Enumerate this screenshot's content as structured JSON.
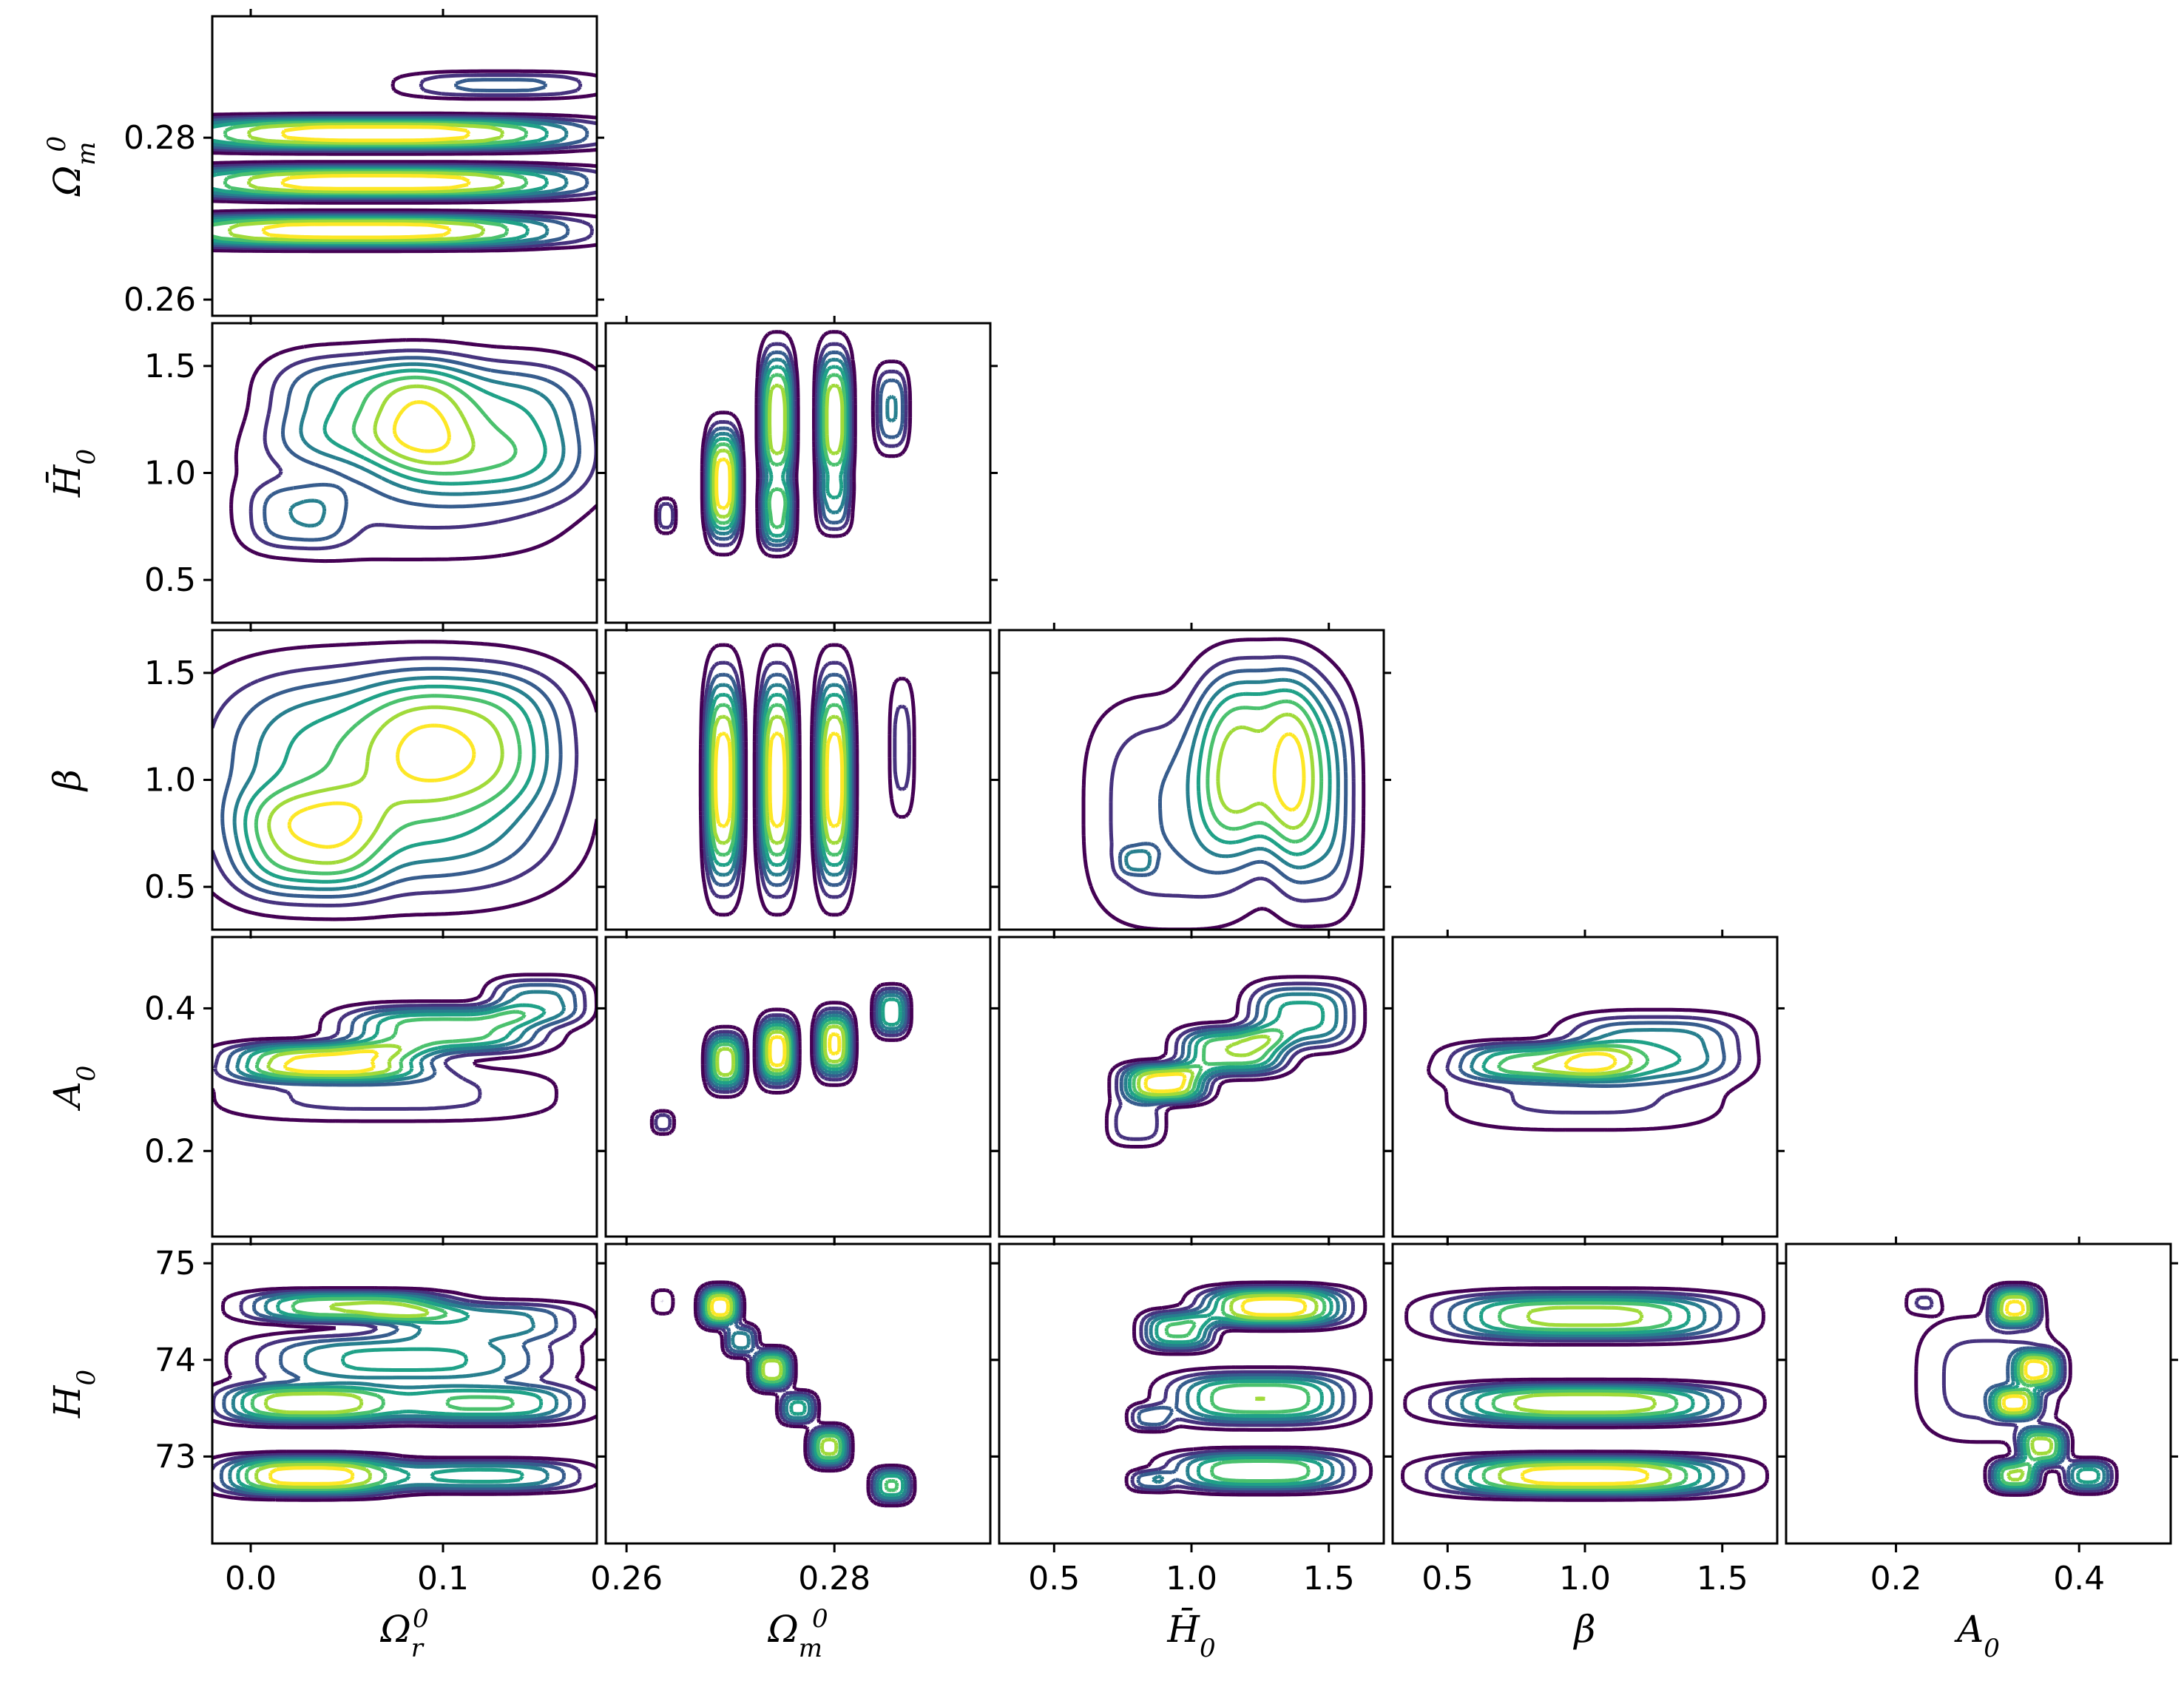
{
  "chart_data": {
    "type": "corner-contour",
    "title": "",
    "parameters": [
      {
        "key": "Om_r",
        "label": "Ω",
        "label_sub": "r",
        "label_sup": "0",
        "range": [
          -0.02,
          0.18
        ],
        "ticks": [
          0.0,
          0.1
        ],
        "tick_labels": [
          "0.0",
          "0.1"
        ]
      },
      {
        "key": "Om_m",
        "label": "Ω",
        "label_sub": "m",
        "label_sup": "0",
        "range": [
          0.258,
          0.295
        ],
        "ticks": [
          0.26,
          0.28
        ],
        "tick_labels": [
          "0.26",
          "0.28"
        ]
      },
      {
        "key": "Hbar0",
        "label": "H̄",
        "label_sub": "0",
        "label_sup": "",
        "range": [
          0.3,
          1.7
        ],
        "ticks": [
          0.5,
          1.0,
          1.5
        ],
        "tick_labels": [
          "0.5",
          "1.0",
          "1.5"
        ]
      },
      {
        "key": "beta",
        "label": "β",
        "label_sub": "",
        "label_sup": "",
        "range": [
          0.3,
          1.7
        ],
        "ticks": [
          0.5,
          1.0,
          1.5
        ],
        "tick_labels": [
          "0.5",
          "1.0",
          "1.5"
        ]
      },
      {
        "key": "A0",
        "label": "A",
        "label_sub": "0",
        "label_sup": "",
        "range": [
          0.08,
          0.5
        ],
        "ticks": [
          0.2,
          0.4
        ],
        "tick_labels": [
          "0.2",
          "0.4"
        ]
      },
      {
        "key": "H0",
        "label": "H",
        "label_sub": "0",
        "label_sup": "",
        "range": [
          72.1,
          75.2
        ],
        "ticks": [
          73,
          74,
          75
        ],
        "tick_labels": [
          "73",
          "74",
          "75"
        ]
      }
    ],
    "colormap": [
      "#440154",
      "#46327e",
      "#365c8d",
      "#277f8e",
      "#1fa187",
      "#4ac16d",
      "#a0da39",
      "#fde725"
    ],
    "contour_levels": 8,
    "panels": [
      {
        "x": "Om_r",
        "y": "Om_m",
        "blobs": [
          {
            "cx": 0.065,
            "cy": 0.2805,
            "sx": 0.085,
            "sy": 0.0015,
            "w": 1.0
          },
          {
            "cx": 0.065,
            "cy": 0.2745,
            "sx": 0.085,
            "sy": 0.0015,
            "w": 1.0
          },
          {
            "cx": 0.055,
            "cy": 0.2685,
            "sx": 0.085,
            "sy": 0.0015,
            "w": 1.0
          },
          {
            "cx": 0.13,
            "cy": 0.2865,
            "sx": 0.04,
            "sy": 0.0012,
            "w": 0.35
          }
        ]
      },
      {
        "x": "Om_r",
        "y": "Hbar0",
        "blobs": [
          {
            "cx": 0.12,
            "cy": 1.2,
            "sx": 0.045,
            "sy": 0.25,
            "w": 1.0
          },
          {
            "cx": 0.06,
            "cy": 1.3,
            "sx": 0.04,
            "sy": 0.2,
            "w": 0.9
          },
          {
            "cx": 0.025,
            "cy": 0.8,
            "sx": 0.02,
            "sy": 0.12,
            "w": 0.5
          },
          {
            "cx": 0.08,
            "cy": 0.9,
            "sx": 0.07,
            "sy": 0.25,
            "w": 0.35
          }
        ]
      },
      {
        "x": "Om_r",
        "y": "beta",
        "blobs": [
          {
            "cx": 0.07,
            "cy": 1.0,
            "sx": 0.07,
            "sy": 0.4,
            "w": 1.0
          },
          {
            "cx": 0.03,
            "cy": 0.7,
            "sx": 0.03,
            "sy": 0.2,
            "w": 0.6
          },
          {
            "cx": 0.11,
            "cy": 1.2,
            "sx": 0.04,
            "sy": 0.25,
            "w": 0.5
          }
        ]
      },
      {
        "x": "Om_r",
        "y": "A0",
        "blobs": [
          {
            "cx": 0.04,
            "cy": 0.325,
            "sx": 0.04,
            "sy": 0.02,
            "w": 1.0
          },
          {
            "cx": 0.1,
            "cy": 0.37,
            "sx": 0.04,
            "sy": 0.025,
            "w": 0.8
          },
          {
            "cx": 0.15,
            "cy": 0.41,
            "sx": 0.02,
            "sy": 0.025,
            "w": 0.5
          },
          {
            "cx": 0.07,
            "cy": 0.28,
            "sx": 0.07,
            "sy": 0.03,
            "w": 0.25
          }
        ]
      },
      {
        "x": "Om_r",
        "y": "H0",
        "blobs": [
          {
            "cx": 0.03,
            "cy": 72.8,
            "sx": 0.035,
            "sy": 0.15,
            "w": 1.0
          },
          {
            "cx": 0.03,
            "cy": 73.55,
            "sx": 0.035,
            "sy": 0.15,
            "w": 0.9
          },
          {
            "cx": 0.05,
            "cy": 74.55,
            "sx": 0.04,
            "sy": 0.12,
            "w": 0.8
          },
          {
            "cx": 0.12,
            "cy": 73.55,
            "sx": 0.04,
            "sy": 0.15,
            "w": 0.7
          },
          {
            "cx": 0.12,
            "cy": 72.8,
            "sx": 0.04,
            "sy": 0.12,
            "w": 0.6
          },
          {
            "cx": 0.08,
            "cy": 74.0,
            "sx": 0.06,
            "sy": 0.2,
            "w": 0.6
          },
          {
            "cx": 0.12,
            "cy": 74.4,
            "sx": 0.04,
            "sy": 0.15,
            "w": 0.5
          }
        ]
      },
      {
        "x": "Om_m",
        "y": "Hbar0",
        "blobs": [
          {
            "cx": 0.2693,
            "cy": 0.95,
            "sx": 0.0012,
            "sy": 0.2,
            "w": 1.0
          },
          {
            "cx": 0.2745,
            "cy": 1.25,
            "sx": 0.0012,
            "sy": 0.25,
            "w": 0.9
          },
          {
            "cx": 0.2745,
            "cy": 0.8,
            "sx": 0.0012,
            "sy": 0.12,
            "w": 0.7
          },
          {
            "cx": 0.28,
            "cy": 1.25,
            "sx": 0.0012,
            "sy": 0.25,
            "w": 0.9
          },
          {
            "cx": 0.28,
            "cy": 0.85,
            "sx": 0.0012,
            "sy": 0.1,
            "w": 0.4
          },
          {
            "cx": 0.2855,
            "cy": 1.3,
            "sx": 0.0012,
            "sy": 0.15,
            "w": 0.45
          },
          {
            "cx": 0.2638,
            "cy": 0.8,
            "sx": 0.0007,
            "sy": 0.06,
            "w": 0.3
          }
        ]
      },
      {
        "x": "Om_m",
        "y": "beta",
        "blobs": [
          {
            "cx": 0.2693,
            "cy": 1.0,
            "sx": 0.0013,
            "sy": 0.38,
            "w": 1.0
          },
          {
            "cx": 0.2745,
            "cy": 1.0,
            "sx": 0.0013,
            "sy": 0.38,
            "w": 1.0
          },
          {
            "cx": 0.28,
            "cy": 1.0,
            "sx": 0.0013,
            "sy": 0.38,
            "w": 1.0
          },
          {
            "cx": 0.2865,
            "cy": 1.15,
            "sx": 0.0009,
            "sy": 0.25,
            "w": 0.25
          }
        ]
      },
      {
        "x": "Om_m",
        "y": "A0",
        "blobs": [
          {
            "cx": 0.2695,
            "cy": 0.325,
            "sx": 0.0013,
            "sy": 0.03,
            "w": 0.8
          },
          {
            "cx": 0.2745,
            "cy": 0.34,
            "sx": 0.0013,
            "sy": 0.035,
            "w": 0.9
          },
          {
            "cx": 0.28,
            "cy": 0.35,
            "sx": 0.0013,
            "sy": 0.035,
            "w": 0.85
          },
          {
            "cx": 0.2855,
            "cy": 0.395,
            "sx": 0.0012,
            "sy": 0.025,
            "w": 0.6
          },
          {
            "cx": 0.2635,
            "cy": 0.24,
            "sx": 0.0008,
            "sy": 0.012,
            "w": 0.25
          }
        ]
      },
      {
        "x": "Om_m",
        "y": "H0",
        "blobs": [
          {
            "cx": 0.269,
            "cy": 74.55,
            "sx": 0.0014,
            "sy": 0.15,
            "w": 1.0
          },
          {
            "cx": 0.271,
            "cy": 74.2,
            "sx": 0.0012,
            "sy": 0.12,
            "w": 0.5
          },
          {
            "cx": 0.274,
            "cy": 73.9,
            "sx": 0.0014,
            "sy": 0.15,
            "w": 0.9
          },
          {
            "cx": 0.2765,
            "cy": 73.5,
            "sx": 0.0013,
            "sy": 0.12,
            "w": 0.6
          },
          {
            "cx": 0.2795,
            "cy": 73.1,
            "sx": 0.0014,
            "sy": 0.15,
            "w": 0.85
          },
          {
            "cx": 0.2855,
            "cy": 72.7,
            "sx": 0.0014,
            "sy": 0.13,
            "w": 0.7
          },
          {
            "cx": 0.2635,
            "cy": 74.6,
            "sx": 0.0008,
            "sy": 0.1,
            "w": 0.2
          }
        ]
      },
      {
        "x": "Hbar0",
        "y": "beta",
        "blobs": [
          {
            "cx": 1.25,
            "cy": 1.1,
            "sx": 0.18,
            "sy": 0.35,
            "w": 1.0
          },
          {
            "cx": 1.45,
            "cy": 0.9,
            "sx": 0.12,
            "sy": 0.4,
            "w": 0.6
          },
          {
            "cx": 0.95,
            "cy": 0.85,
            "sx": 0.25,
            "sy": 0.4,
            "w": 0.45
          },
          {
            "cx": 0.8,
            "cy": 0.62,
            "sx": 0.05,
            "sy": 0.05,
            "w": 0.35
          }
        ]
      },
      {
        "x": "Hbar0",
        "y": "A0",
        "blobs": [
          {
            "cx": 0.9,
            "cy": 0.295,
            "sx": 0.12,
            "sy": 0.02,
            "w": 1.0
          },
          {
            "cx": 1.15,
            "cy": 0.34,
            "sx": 0.15,
            "sy": 0.025,
            "w": 0.8
          },
          {
            "cx": 1.4,
            "cy": 0.39,
            "sx": 0.15,
            "sy": 0.035,
            "w": 0.6
          },
          {
            "cx": 0.8,
            "cy": 0.24,
            "sx": 0.08,
            "sy": 0.025,
            "w": 0.3
          }
        ]
      },
      {
        "x": "Hbar0",
        "y": "H0",
        "blobs": [
          {
            "cx": 1.3,
            "cy": 74.55,
            "sx": 0.2,
            "sy": 0.15,
            "w": 1.0
          },
          {
            "cx": 0.95,
            "cy": 74.3,
            "sx": 0.1,
            "sy": 0.15,
            "w": 0.7
          },
          {
            "cx": 1.25,
            "cy": 73.6,
            "sx": 0.25,
            "sy": 0.2,
            "w": 0.8
          },
          {
            "cx": 1.25,
            "cy": 72.85,
            "sx": 0.25,
            "sy": 0.15,
            "w": 0.8
          },
          {
            "cx": 0.85,
            "cy": 73.4,
            "sx": 0.06,
            "sy": 0.1,
            "w": 0.35
          },
          {
            "cx": 0.85,
            "cy": 72.75,
            "sx": 0.06,
            "sy": 0.08,
            "w": 0.35
          }
        ]
      },
      {
        "x": "beta",
        "y": "A0",
        "blobs": [
          {
            "cx": 0.85,
            "cy": 0.325,
            "sx": 0.25,
            "sy": 0.02,
            "w": 1.0
          },
          {
            "cx": 1.25,
            "cy": 0.345,
            "sx": 0.25,
            "sy": 0.035,
            "w": 0.8
          },
          {
            "cx": 1.0,
            "cy": 0.28,
            "sx": 0.4,
            "sy": 0.04,
            "w": 0.35
          }
        ]
      },
      {
        "x": "beta",
        "y": "H0",
        "blobs": [
          {
            "cx": 1.0,
            "cy": 72.8,
            "sx": 0.4,
            "sy": 0.15,
            "w": 1.0
          },
          {
            "cx": 1.0,
            "cy": 73.55,
            "sx": 0.4,
            "sy": 0.15,
            "w": 0.9
          },
          {
            "cx": 1.0,
            "cy": 74.45,
            "sx": 0.4,
            "sy": 0.18,
            "w": 0.85
          }
        ]
      },
      {
        "x": "A0",
        "y": "H0",
        "blobs": [
          {
            "cx": 0.33,
            "cy": 74.55,
            "sx": 0.02,
            "sy": 0.15,
            "w": 0.9
          },
          {
            "cx": 0.355,
            "cy": 73.9,
            "sx": 0.02,
            "sy": 0.15,
            "w": 0.8
          },
          {
            "cx": 0.33,
            "cy": 73.55,
            "sx": 0.02,
            "sy": 0.12,
            "w": 0.75
          },
          {
            "cx": 0.36,
            "cy": 73.1,
            "sx": 0.02,
            "sy": 0.15,
            "w": 0.8
          },
          {
            "cx": 0.33,
            "cy": 72.8,
            "sx": 0.02,
            "sy": 0.12,
            "w": 0.8
          },
          {
            "cx": 0.41,
            "cy": 72.8,
            "sx": 0.02,
            "sy": 0.12,
            "w": 0.6
          },
          {
            "cx": 0.23,
            "cy": 74.6,
            "sx": 0.015,
            "sy": 0.1,
            "w": 0.2
          },
          {
            "cx": 0.3,
            "cy": 73.8,
            "sx": 0.06,
            "sy": 0.5,
            "w": 0.25
          }
        ]
      }
    ]
  }
}
